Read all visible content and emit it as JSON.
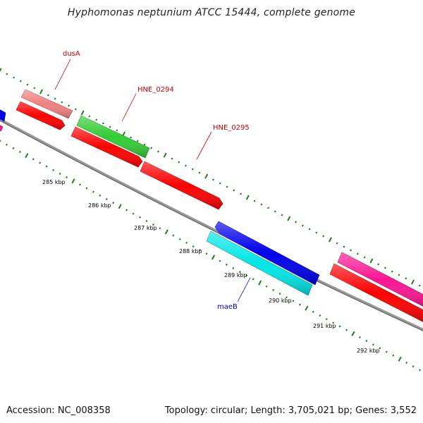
{
  "title": "Hyphomonas neptunium ATCC 15444, complete genome",
  "footer": {
    "accession": "Accession: NC_008358",
    "summary": "Topology: circular; Length: 3,705,021 bp; Genes: 3,552"
  },
  "ticks": [
    "285 kbp",
    "286 kbp",
    "287 kbp",
    "288 kbp",
    "289 kbp",
    "290 kbp",
    "291 kbp",
    "292 kbp"
  ],
  "gene_labels": {
    "dusA": "dusA",
    "hne0294": "HNE_0294",
    "hne0295": "HNE_0295",
    "maeB": "maeB"
  },
  "colors": {
    "backbone": "#8c8c8c",
    "tick": "#1e7d1e",
    "label_red": "#cc0000",
    "label_blue": "#0000cc",
    "red": "#ff0000",
    "pink": "#f08080",
    "green": "#33cc33",
    "blue": "#0000ee",
    "cyan": "#00e6e6",
    "magenta": "#ff1493"
  }
}
